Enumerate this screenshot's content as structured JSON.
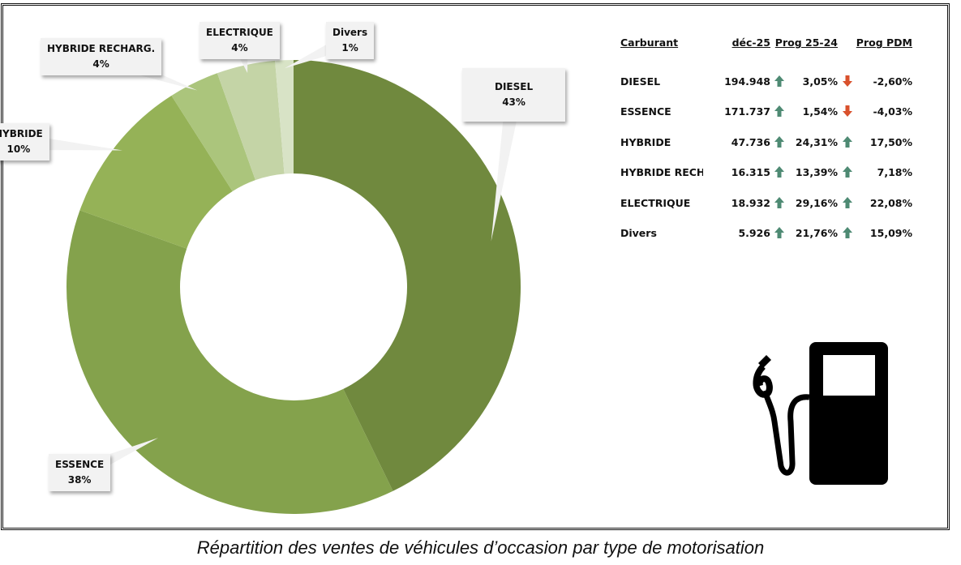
{
  "chart_data": {
    "type": "pie",
    "subtype": "donut",
    "caption": "Répartition des ventes de véhicules d’occasion par type de motorisation",
    "slices": [
      {
        "label": "DIESEL",
        "percent_label": "43%",
        "value": 194948,
        "color": "#70893e"
      },
      {
        "label": "ESSENCE",
        "percent_label": "38%",
        "value": 171737,
        "color": "#84a24c"
      },
      {
        "label": "HYBRIDE",
        "percent_label": "10%",
        "value": 47736,
        "color": "#95b257"
      },
      {
        "label": "HYBRIDE RECHARG.",
        "percent_label": "4%",
        "value": 16315,
        "color": "#abc57c"
      },
      {
        "label": "ELECTRIQUE",
        "percent_label": "4%",
        "value": 18932,
        "color": "#c4d4a6"
      },
      {
        "label": "Divers",
        "percent_label": "1%",
        "value": 5926,
        "color": "#d8e3c6"
      }
    ]
  },
  "table": {
    "headers": [
      "Carburant",
      "déc-25",
      "Prog 25-24",
      "Prog PDM"
    ],
    "rows": [
      {
        "name": "DIESEL",
        "dec": "194.948",
        "dec_trend": "up",
        "prog": "3,05%",
        "prog_trend": "down",
        "pdm": "-2,60%"
      },
      {
        "name": "ESSENCE",
        "dec": "171.737",
        "dec_trend": "up",
        "prog": "1,54%",
        "prog_trend": "down",
        "pdm": "-4,03%"
      },
      {
        "name": "HYBRIDE",
        "dec": "47.736",
        "dec_trend": "up",
        "prog": "24,31%",
        "prog_trend": "up",
        "pdm": "17,50%"
      },
      {
        "name": "HYBRIDE RECHA",
        "dec": "16.315",
        "dec_trend": "up",
        "prog": "13,39%",
        "prog_trend": "up",
        "pdm": "7,18%"
      },
      {
        "name": "ELECTRIQUE",
        "dec": "18.932",
        "dec_trend": "up",
        "prog": "29,16%",
        "prog_trend": "up",
        "pdm": "22,08%"
      },
      {
        "name": "Divers",
        "dec": "5.926",
        "dec_trend": "up",
        "prog": "21,76%",
        "prog_trend": "up",
        "pdm": "15,09%"
      }
    ],
    "colors": {
      "up": "#4e8a73",
      "down": "#d9512c"
    }
  },
  "icon": "fuel-pump-icon"
}
